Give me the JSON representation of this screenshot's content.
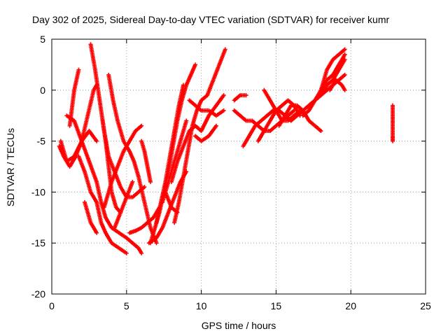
{
  "chart_data": {
    "type": "scatter",
    "title": "Day 302 of 2025, Sidereal Day-to-day VTEC variation (SDTVAR) for receiver kumr",
    "xlabel": "GPS time / hours",
    "ylabel": "SDTVAR / TECUs",
    "xlim": [
      0,
      25
    ],
    "ylim": [
      -20,
      5
    ],
    "x_ticks": [
      "0",
      "5",
      "10",
      "15",
      "20",
      "25"
    ],
    "y_ticks": [
      "5",
      "0",
      "-5",
      "-10",
      "-15",
      "-20"
    ],
    "grid": true,
    "marker": "+",
    "color": "#ff0000",
    "series": [
      {
        "x": [
          0.5,
          0.8,
          1.2,
          1.6,
          2.0,
          2.4,
          2.8,
          3.0
        ],
        "y": [
          -5.5,
          -6.5,
          -7.5,
          -6.5,
          -5.0,
          -2.5,
          0.0,
          0.5
        ]
      },
      {
        "x": [
          0.6,
          1.0,
          1.5,
          2.0,
          2.5,
          3.0
        ],
        "y": [
          -5.0,
          -7.0,
          -6.5,
          -5.0,
          -4.0,
          -5.0
        ]
      },
      {
        "x": [
          1.2,
          1.5,
          1.8
        ],
        "y": [
          -3.5,
          0.0,
          2.0
        ]
      },
      {
        "x": [
          1.8,
          2.2,
          2.6,
          3.0,
          3.3,
          3.6,
          4.0,
          4.5,
          5.0
        ],
        "y": [
          -6.5,
          -8.0,
          -10.0,
          -11.0,
          -13.0,
          -14.0,
          -15.0,
          -15.5,
          -16.0
        ]
      },
      {
        "x": [
          1.0,
          1.5,
          2.0,
          2.5,
          3.0,
          3.3,
          3.6,
          4.0,
          4.5,
          5.0,
          5.4,
          5.8,
          6.0
        ],
        "y": [
          -2.5,
          -3.0,
          -5.0,
          -7.0,
          -9.0,
          -11.0,
          -12.5,
          -13.5,
          -14.0,
          -14.5,
          -15.0,
          -15.5,
          -16.0
        ]
      },
      {
        "x": [
          2.2,
          2.4,
          2.6,
          2.8,
          3.0
        ],
        "y": [
          -11.0,
          -12.0,
          -13.0,
          -13.5,
          -14.0
        ]
      },
      {
        "x": [
          2.6,
          2.9,
          3.2,
          3.5,
          3.8,
          4.2,
          4.6,
          5.0,
          5.4,
          5.8,
          6.2
        ],
        "y": [
          4.5,
          2.0,
          -1.0,
          -4.0,
          -6.5,
          -8.0,
          -9.5,
          -10.5,
          -10.5,
          -10.0,
          -9.5
        ]
      },
      {
        "x": [
          3.4,
          3.6,
          3.8,
          4.0,
          4.3,
          4.6
        ],
        "y": [
          -3.0,
          -5.0,
          -7.5,
          -10.0,
          -11.5,
          -12.0
        ]
      },
      {
        "x": [
          3.8,
          4.1,
          4.4,
          4.8,
          5.2,
          5.5,
          5.8,
          6.2,
          6.6,
          7.0
        ],
        "y": [
          1.5,
          -1.0,
          -3.0,
          -5.0,
          -6.0,
          -7.0,
          -8.5,
          -11.0,
          -13.5,
          -15.0
        ]
      },
      {
        "x": [
          3.5,
          4.0,
          4.4,
          4.8,
          5.2,
          5.6,
          6.0
        ],
        "y": [
          -11.5,
          -9.0,
          -7.5,
          -6.0,
          -5.0,
          -4.0,
          -3.5
        ]
      },
      {
        "x": [
          4.2,
          4.6,
          5.0,
          5.4
        ],
        "y": [
          -13.5,
          -12.0,
          -10.5,
          -9.0
        ]
      },
      {
        "x": [
          5.2,
          5.6,
          6.0,
          6.4,
          6.8,
          7.2
        ],
        "y": [
          -14.0,
          -13.8,
          -13.5,
          -13.0,
          -12.5,
          -11.5
        ]
      },
      {
        "x": [
          6.0,
          6.2,
          6.4,
          6.6
        ],
        "y": [
          -5.0,
          -6.0,
          -7.5,
          -9.0
        ]
      },
      {
        "x": [
          6.5,
          7.0,
          7.4,
          7.8,
          8.2,
          8.6,
          9.0
        ],
        "y": [
          -15.0,
          -14.5,
          -13.5,
          -12.0,
          -10.5,
          -9.0,
          -8.0
        ]
      },
      {
        "x": [
          6.6,
          6.9,
          7.2,
          7.5,
          7.8,
          8.1,
          8.4,
          8.7,
          9.0,
          9.3,
          9.6
        ],
        "y": [
          -15.0,
          -13.5,
          -12.0,
          -10.0,
          -8.0,
          -5.5,
          -3.0,
          -1.0,
          0.5,
          1.5,
          2.5
        ]
      },
      {
        "x": [
          7.0,
          7.3,
          7.6,
          7.9,
          8.2,
          8.5,
          8.8
        ],
        "y": [
          -13.0,
          -11.0,
          -9.0,
          -6.5,
          -4.0,
          -1.5,
          0.5
        ]
      },
      {
        "x": [
          7.4,
          7.8,
          8.2,
          8.6,
          9.0
        ],
        "y": [
          -11.0,
          -9.0,
          -7.0,
          -5.0,
          -3.0
        ]
      },
      {
        "x": [
          7.6,
          8.0,
          8.4
        ],
        "y": [
          -10.0,
          -11.5,
          -12.0
        ]
      },
      {
        "x": [
          8.2,
          8.5,
          8.8,
          9.1,
          9.4,
          9.7,
          10.0,
          10.4,
          10.8,
          11.2,
          11.6
        ],
        "y": [
          -13.0,
          -11.0,
          -8.5,
          -6.0,
          -3.5,
          -2.0,
          -1.0,
          -0.5,
          1.0,
          2.5,
          4.0
        ]
      },
      {
        "x": [
          8.0,
          8.4,
          8.8,
          9.2,
          9.6,
          10.0,
          10.5,
          11.0,
          11.5
        ],
        "y": [
          -9.0,
          -7.0,
          -5.5,
          -4.0,
          -3.5,
          -4.0,
          -2.5,
          -1.5,
          -0.5
        ]
      },
      {
        "x": [
          9.2,
          9.6,
          10.0,
          10.5,
          11.0,
          11.5
        ],
        "y": [
          -1.0,
          -1.5,
          -2.0,
          -2.0,
          -2.5,
          -2.0
        ]
      },
      {
        "x": [
          9.6,
          10.0,
          10.5,
          11.0
        ],
        "y": [
          -4.5,
          -5.0,
          -4.5,
          -3.5
        ]
      },
      {
        "x": [
          12.2,
          12.6,
          13.0
        ],
        "y": [
          -1.0,
          -0.5,
          -0.5
        ]
      },
      {
        "x": [
          12.2,
          12.6,
          13.0,
          13.4,
          13.8,
          14.2,
          14.6,
          15.0,
          15.4,
          15.8,
          16.2
        ],
        "y": [
          -2.0,
          -2.5,
          -3.0,
          -3.0,
          -3.5,
          -4.0,
          -4.0,
          -3.5,
          -3.0,
          -2.5,
          -2.0
        ]
      },
      {
        "x": [
          12.8,
          13.2,
          13.6,
          14.0,
          14.4,
          14.8,
          15.2,
          15.6,
          16.0
        ],
        "y": [
          -5.5,
          -4.5,
          -3.5,
          -3.0,
          -2.5,
          -2.0,
          -2.0,
          -2.5,
          -3.0
        ]
      },
      {
        "x": [
          13.8,
          14.2,
          14.6,
          15.0,
          15.4,
          15.8,
          16.2,
          16.6
        ],
        "y": [
          -5.0,
          -4.0,
          -3.0,
          -2.0,
          -1.5,
          -1.0,
          -1.5,
          -2.5
        ]
      },
      {
        "x": [
          14.2,
          14.6,
          15.0,
          15.4,
          15.8,
          16.2,
          16.6,
          17.0
        ],
        "y": [
          0.0,
          -1.0,
          -2.0,
          -3.0,
          -3.0,
          -2.5,
          -2.0,
          -2.5
        ]
      },
      {
        "x": [
          15.2,
          15.6,
          16.0,
          16.4,
          16.8,
          17.2,
          17.6,
          18.0
        ],
        "y": [
          -3.5,
          -2.5,
          -1.5,
          -1.5,
          -2.0,
          -3.0,
          -3.5,
          -4.0
        ]
      },
      {
        "x": [
          16.0,
          16.4,
          16.8,
          17.2,
          17.6,
          18.0,
          18.4,
          18.8,
          19.2,
          19.6
        ],
        "y": [
          -3.0,
          -2.5,
          -2.0,
          -1.5,
          -1.0,
          -0.5,
          0.0,
          0.5,
          1.0,
          1.5
        ]
      },
      {
        "x": [
          16.8,
          17.2,
          17.6,
          18.0,
          18.4,
          18.8,
          19.2,
          19.6
        ],
        "y": [
          -2.5,
          -2.0,
          -1.0,
          0.0,
          1.0,
          1.5,
          2.5,
          3.5
        ]
      },
      {
        "x": [
          17.2,
          17.6,
          18.0,
          18.4,
          18.8,
          19.2,
          19.6
        ],
        "y": [
          -1.5,
          -1.0,
          -0.5,
          0.5,
          1.0,
          2.0,
          3.0
        ]
      },
      {
        "x": [
          18.0,
          18.4,
          18.8,
          19.2,
          19.6
        ],
        "y": [
          0.0,
          2.0,
          3.0,
          3.5,
          4.0
        ]
      },
      {
        "x": [
          18.6,
          19.0,
          19.4,
          19.6
        ],
        "y": [
          0.0,
          1.0,
          0.5,
          0.0
        ]
      },
      {
        "x": [
          22.8,
          22.8,
          22.8,
          22.8,
          22.8
        ],
        "y": [
          -1.5,
          -2.5,
          -3.5,
          -4.5,
          -5.0
        ]
      }
    ]
  }
}
